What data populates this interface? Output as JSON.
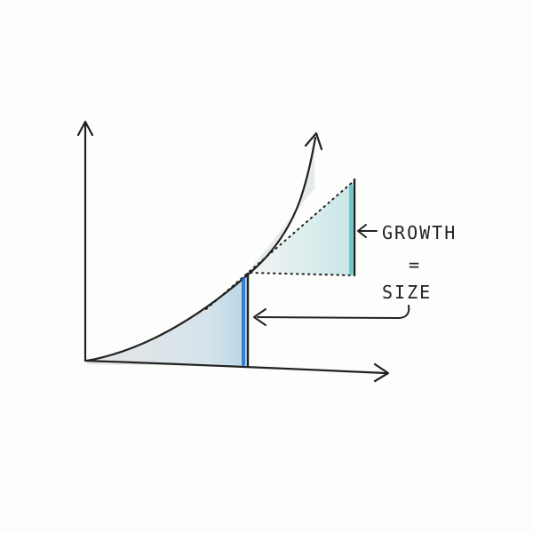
{
  "labels": {
    "growth": "GROWTH",
    "equals": "=",
    "size": "SIZE"
  },
  "colors": {
    "ink": "#222222",
    "shade_gray": "#d9d9d9",
    "shade_blue": "#cfe3ec",
    "accent_blue": "#1f6fc9",
    "accent_teal": "#5fc1c9"
  }
}
